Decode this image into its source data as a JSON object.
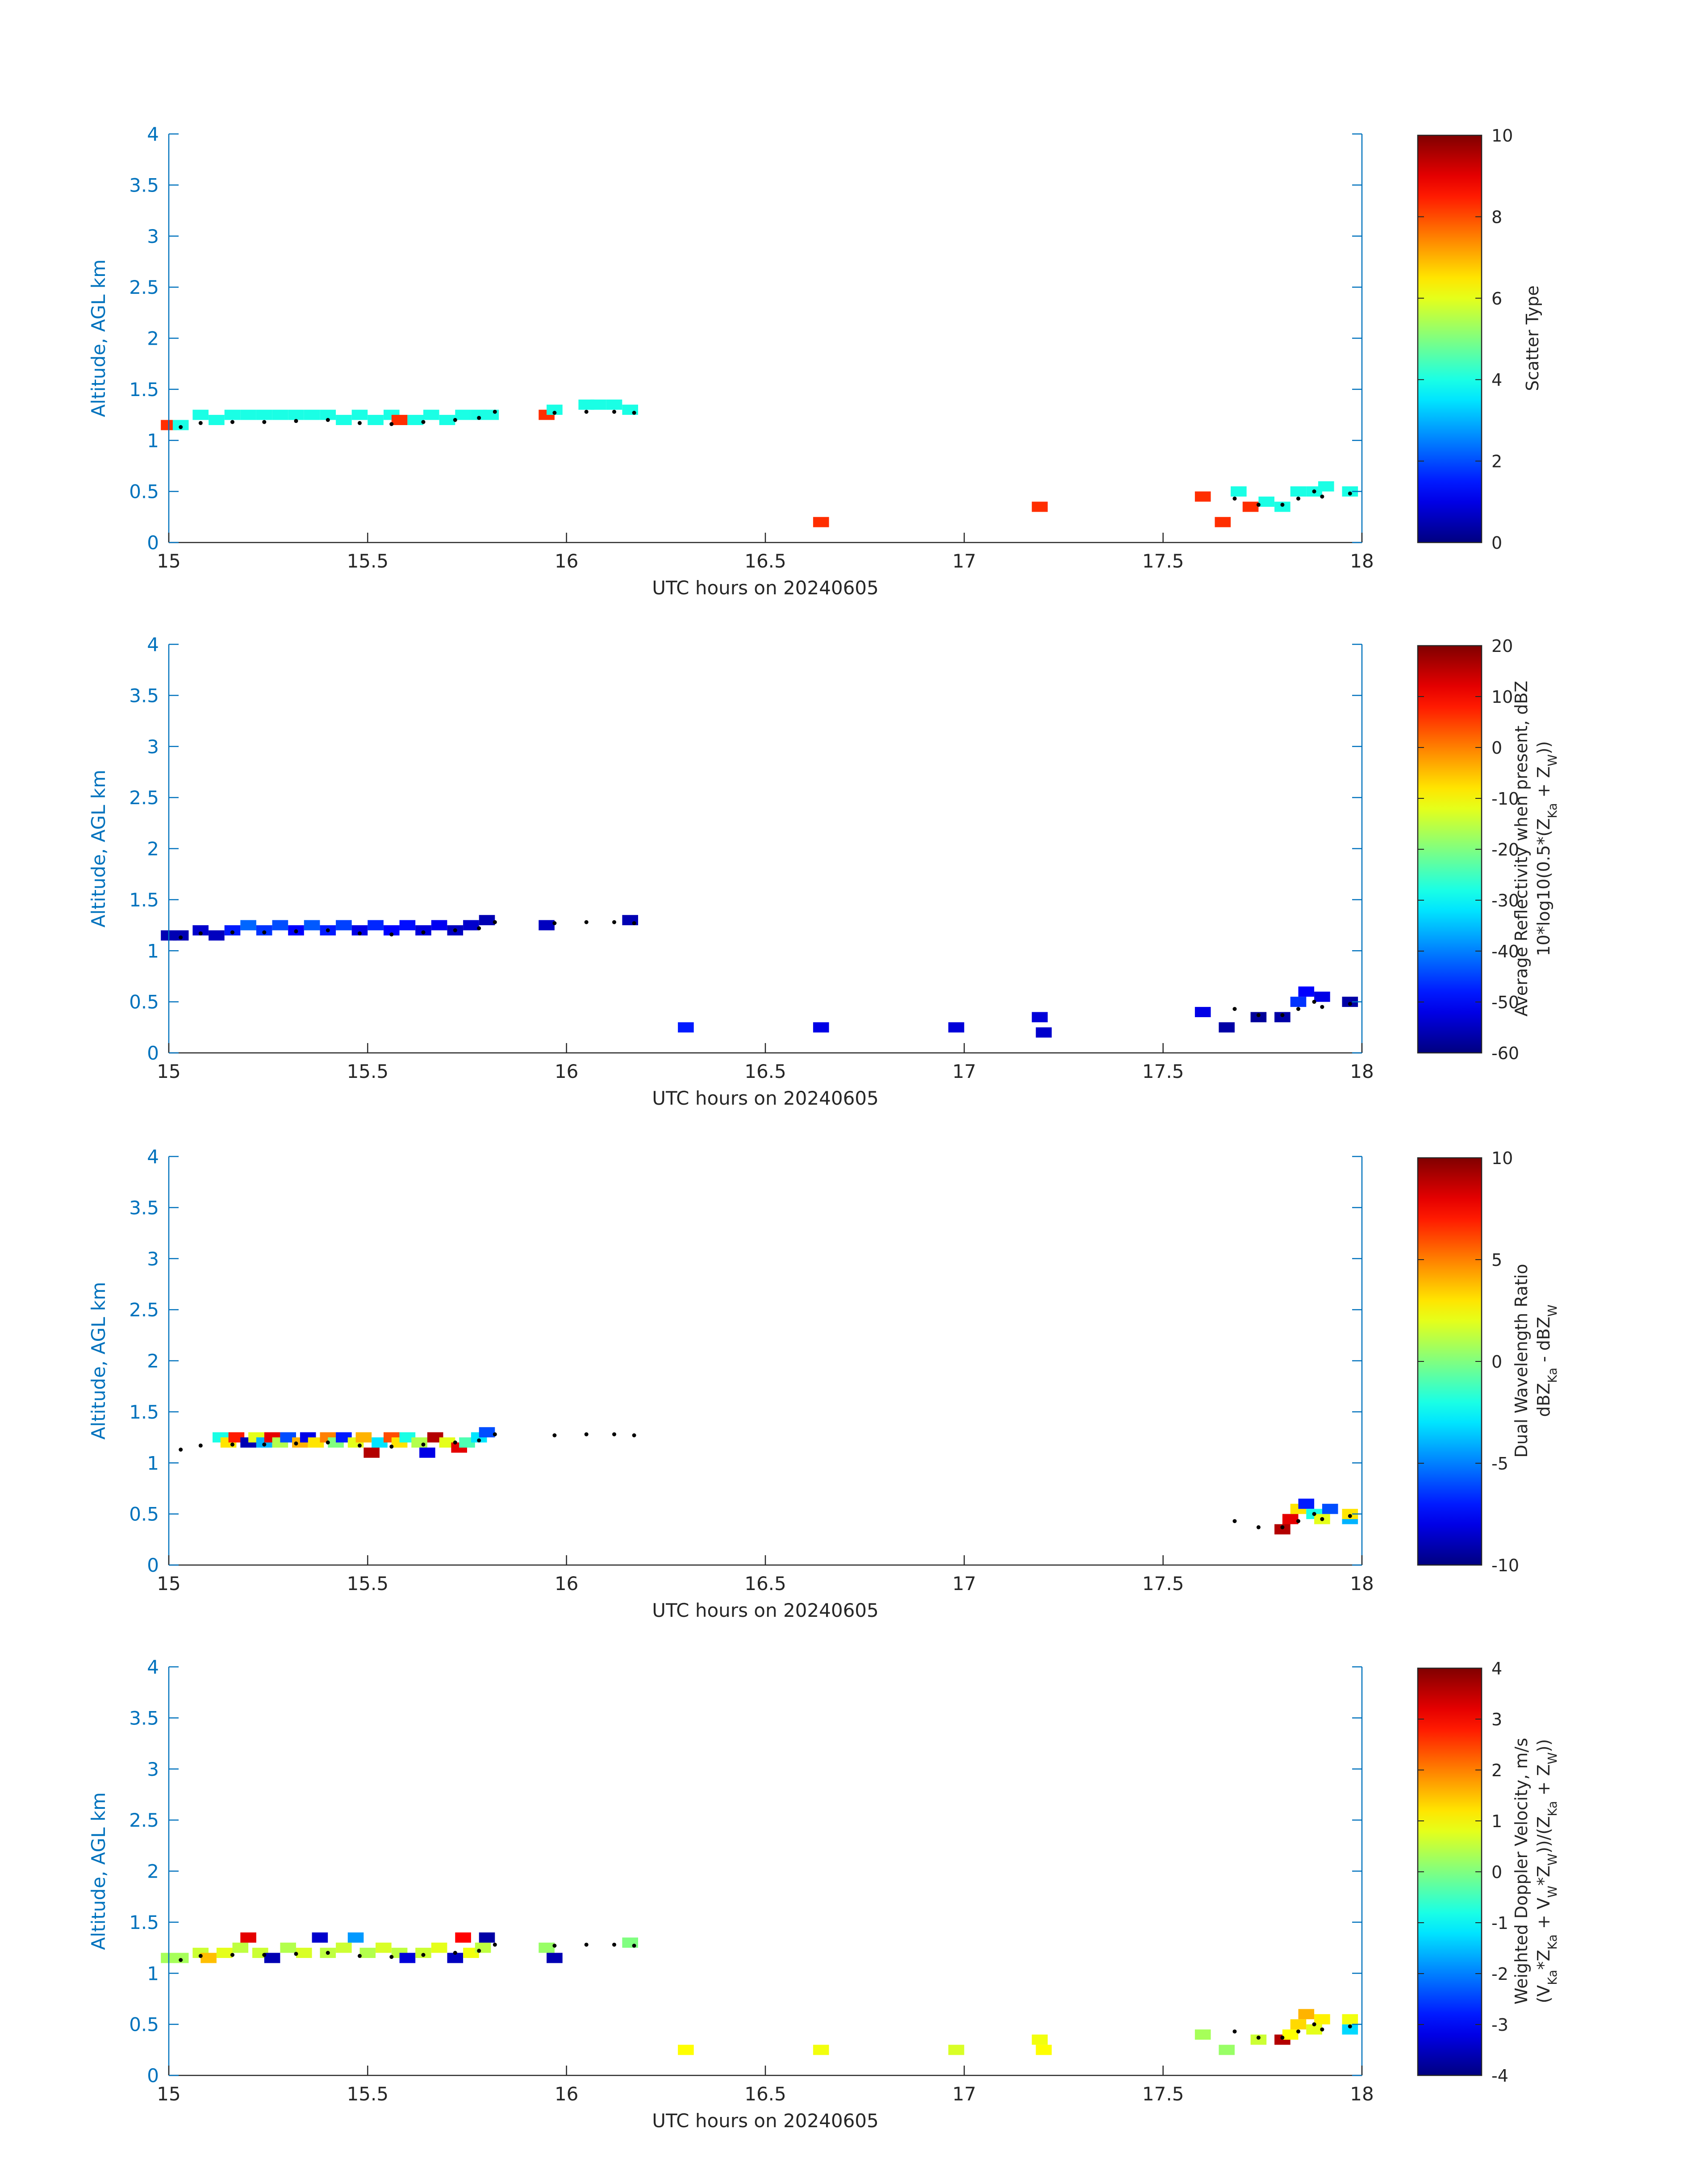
{
  "figure": {
    "background": "#ffffff",
    "axis_color": "#0072bd",
    "text_color": "#262626"
  },
  "colormap": "jet",
  "chart_data": [
    {
      "id": "scatter_type",
      "type": "heatmap",
      "xlabel": "UTC hours on 20240605",
      "ylabel": "Altitude, AGL km",
      "xlim": [
        15,
        18
      ],
      "ylim": [
        0,
        4
      ],
      "xticks": [
        "15",
        "15.5",
        "16",
        "16.5",
        "17",
        "17.5",
        "18"
      ],
      "yticks": [
        "0",
        "0.5",
        "1",
        "1.5",
        "2",
        "2.5",
        "3",
        "3.5",
        "4"
      ],
      "colorbar": {
        "label_lines": [
          "Scatter Type"
        ],
        "clim": [
          0,
          10
        ],
        "ticks": [
          "0",
          "2",
          "4",
          "6",
          "8",
          "10"
        ]
      },
      "cells": [
        [
          15.0,
          1.15,
          8.3
        ],
        [
          15.03,
          1.15,
          4.0
        ],
        [
          15.08,
          1.25,
          4.0
        ],
        [
          15.12,
          1.2,
          4.0
        ],
        [
          15.16,
          1.25,
          4.0
        ],
        [
          15.2,
          1.25,
          4.0
        ],
        [
          15.24,
          1.25,
          4.0
        ],
        [
          15.28,
          1.25,
          4.0
        ],
        [
          15.32,
          1.25,
          4.0
        ],
        [
          15.36,
          1.25,
          4.0
        ],
        [
          15.4,
          1.25,
          4.0
        ],
        [
          15.44,
          1.2,
          4.0
        ],
        [
          15.48,
          1.25,
          4.0
        ],
        [
          15.52,
          1.2,
          4.0
        ],
        [
          15.56,
          1.25,
          4.0
        ],
        [
          15.58,
          1.2,
          8.3
        ],
        [
          15.62,
          1.2,
          4.0
        ],
        [
          15.66,
          1.25,
          4.0
        ],
        [
          15.7,
          1.2,
          4.0
        ],
        [
          15.74,
          1.25,
          4.0
        ],
        [
          15.78,
          1.25,
          4.0
        ],
        [
          15.81,
          1.25,
          4.0
        ],
        [
          15.95,
          1.25,
          8.3
        ],
        [
          15.97,
          1.3,
          4.0
        ],
        [
          16.05,
          1.35,
          4.0
        ],
        [
          16.08,
          1.35,
          4.0
        ],
        [
          16.12,
          1.35,
          4.0
        ],
        [
          16.16,
          1.3,
          4.0
        ],
        [
          16.64,
          0.2,
          8.3
        ],
        [
          17.19,
          0.35,
          8.3
        ],
        [
          17.6,
          0.45,
          8.3
        ],
        [
          17.65,
          0.2,
          8.3
        ],
        [
          17.69,
          0.5,
          4.0
        ],
        [
          17.72,
          0.35,
          8.3
        ],
        [
          17.76,
          0.4,
          4.0
        ],
        [
          17.8,
          0.35,
          4.0
        ],
        [
          17.84,
          0.5,
          4.0
        ],
        [
          17.88,
          0.5,
          4.0
        ],
        [
          17.91,
          0.55,
          4.0
        ],
        [
          17.97,
          0.5,
          4.0
        ]
      ],
      "track": [
        [
          15.03,
          1.13
        ],
        [
          15.08,
          1.17
        ],
        [
          15.16,
          1.18
        ],
        [
          15.24,
          1.18
        ],
        [
          15.32,
          1.19
        ],
        [
          15.4,
          1.2
        ],
        [
          15.48,
          1.17
        ],
        [
          15.56,
          1.16
        ],
        [
          15.64,
          1.18
        ],
        [
          15.72,
          1.2
        ],
        [
          15.78,
          1.22
        ],
        [
          15.82,
          1.28
        ],
        [
          15.97,
          1.27
        ],
        [
          16.05,
          1.28
        ],
        [
          16.12,
          1.28
        ],
        [
          16.17,
          1.27
        ],
        [
          17.68,
          0.43
        ],
        [
          17.74,
          0.37
        ],
        [
          17.8,
          0.37
        ],
        [
          17.84,
          0.43
        ],
        [
          17.88,
          0.5
        ],
        [
          17.9,
          0.45
        ],
        [
          17.97,
          0.48
        ]
      ]
    },
    {
      "id": "avg_reflectivity",
      "type": "heatmap",
      "xlabel": "UTC hours on 20240605",
      "ylabel": "Altitude, AGL km",
      "xlim": [
        15,
        18
      ],
      "ylim": [
        0,
        4
      ],
      "xticks": [
        "15",
        "15.5",
        "16",
        "16.5",
        "17",
        "17.5",
        "18"
      ],
      "yticks": [
        "0",
        "0.5",
        "1",
        "1.5",
        "2",
        "2.5",
        "3",
        "3.5",
        "4"
      ],
      "colorbar": {
        "label_lines": [
          "Average Reflectivity when present, dBZ",
          "10*log10(0.5*(Z_Ka + Z_W))"
        ],
        "clim": [
          -60,
          20
        ],
        "ticks": [
          "-60",
          "-50",
          "-40",
          "-30",
          "-20",
          "-10",
          "0",
          "10",
          "20"
        ]
      },
      "cells": [
        [
          15.0,
          1.15,
          -56
        ],
        [
          15.03,
          1.15,
          -56
        ],
        [
          15.08,
          1.2,
          -54
        ],
        [
          15.12,
          1.15,
          -55
        ],
        [
          15.16,
          1.2,
          -48
        ],
        [
          15.2,
          1.25,
          -42
        ],
        [
          15.24,
          1.2,
          -46
        ],
        [
          15.28,
          1.25,
          -44
        ],
        [
          15.32,
          1.2,
          -50
        ],
        [
          15.36,
          1.25,
          -43
        ],
        [
          15.4,
          1.2,
          -48
        ],
        [
          15.44,
          1.25,
          -45
        ],
        [
          15.48,
          1.2,
          -52
        ],
        [
          15.52,
          1.25,
          -47
        ],
        [
          15.56,
          1.2,
          -50
        ],
        [
          15.6,
          1.25,
          -49
        ],
        [
          15.64,
          1.2,
          -53
        ],
        [
          15.68,
          1.25,
          -51
        ],
        [
          15.72,
          1.2,
          -55
        ],
        [
          15.76,
          1.25,
          -54
        ],
        [
          15.8,
          1.3,
          -56
        ],
        [
          15.95,
          1.25,
          -55
        ],
        [
          16.16,
          1.3,
          -56
        ],
        [
          16.3,
          0.25,
          -48
        ],
        [
          16.64,
          0.25,
          -52
        ],
        [
          16.98,
          0.25,
          -53
        ],
        [
          17.19,
          0.35,
          -53
        ],
        [
          17.2,
          0.2,
          -54
        ],
        [
          17.6,
          0.4,
          -52
        ],
        [
          17.66,
          0.25,
          -57
        ],
        [
          17.74,
          0.35,
          -58
        ],
        [
          17.8,
          0.35,
          -57
        ],
        [
          17.84,
          0.5,
          -46
        ],
        [
          17.86,
          0.6,
          -50
        ],
        [
          17.9,
          0.55,
          -52
        ],
        [
          17.97,
          0.5,
          -57
        ]
      ],
      "track": [
        [
          15.03,
          1.13
        ],
        [
          15.08,
          1.17
        ],
        [
          15.16,
          1.18
        ],
        [
          15.24,
          1.18
        ],
        [
          15.32,
          1.19
        ],
        [
          15.4,
          1.2
        ],
        [
          15.48,
          1.17
        ],
        [
          15.56,
          1.16
        ],
        [
          15.64,
          1.18
        ],
        [
          15.72,
          1.2
        ],
        [
          15.78,
          1.22
        ],
        [
          15.82,
          1.28
        ],
        [
          15.97,
          1.27
        ],
        [
          16.05,
          1.28
        ],
        [
          16.12,
          1.28
        ],
        [
          16.17,
          1.27
        ],
        [
          17.68,
          0.43
        ],
        [
          17.74,
          0.37
        ],
        [
          17.8,
          0.37
        ],
        [
          17.84,
          0.43
        ],
        [
          17.88,
          0.5
        ],
        [
          17.9,
          0.45
        ],
        [
          17.97,
          0.48
        ]
      ]
    },
    {
      "id": "dwr",
      "type": "heatmap",
      "xlabel": "UTC hours on 20240605",
      "ylabel": "Altitude, AGL km",
      "xlim": [
        15,
        18
      ],
      "ylim": [
        0,
        4
      ],
      "xticks": [
        "15",
        "15.5",
        "16",
        "16.5",
        "17",
        "17.5",
        "18"
      ],
      "yticks": [
        "0",
        "0.5",
        "1",
        "1.5",
        "2",
        "2.5",
        "3",
        "3.5",
        "4"
      ],
      "colorbar": {
        "label_lines": [
          "Dual Wavelength Ratio",
          "dBZ_Ka - dBZ_W"
        ],
        "clim": [
          -10,
          10
        ],
        "ticks": [
          "-10",
          "-5",
          "0",
          "5",
          "10"
        ]
      },
      "cells": [
        [
          15.13,
          1.25,
          -2
        ],
        [
          15.15,
          1.2,
          3
        ],
        [
          15.17,
          1.25,
          7
        ],
        [
          15.2,
          1.2,
          -9
        ],
        [
          15.22,
          1.25,
          2
        ],
        [
          15.24,
          1.2,
          -4
        ],
        [
          15.26,
          1.25,
          8
        ],
        [
          15.28,
          1.2,
          1
        ],
        [
          15.3,
          1.25,
          -6
        ],
        [
          15.33,
          1.2,
          4
        ],
        [
          15.35,
          1.25,
          -8
        ],
        [
          15.37,
          1.2,
          3
        ],
        [
          15.4,
          1.25,
          5
        ],
        [
          15.42,
          1.2,
          0
        ],
        [
          15.44,
          1.25,
          -7
        ],
        [
          15.47,
          1.2,
          2
        ],
        [
          15.49,
          1.25,
          4
        ],
        [
          15.51,
          1.1,
          9
        ],
        [
          15.53,
          1.2,
          -3
        ],
        [
          15.56,
          1.25,
          6
        ],
        [
          15.58,
          1.2,
          3
        ],
        [
          15.6,
          1.25,
          -2
        ],
        [
          15.63,
          1.2,
          1
        ],
        [
          15.65,
          1.1,
          -8
        ],
        [
          15.67,
          1.25,
          9
        ],
        [
          15.7,
          1.2,
          2
        ],
        [
          15.73,
          1.15,
          8
        ],
        [
          15.75,
          1.2,
          -1
        ],
        [
          15.78,
          1.25,
          -3
        ],
        [
          15.8,
          1.3,
          -6
        ],
        [
          17.8,
          0.35,
          9
        ],
        [
          17.82,
          0.45,
          8
        ],
        [
          17.84,
          0.55,
          3
        ],
        [
          17.86,
          0.6,
          -7
        ],
        [
          17.88,
          0.5,
          -2
        ],
        [
          17.9,
          0.45,
          2
        ],
        [
          17.92,
          0.55,
          -6
        ],
        [
          17.97,
          0.45,
          -4
        ],
        [
          17.97,
          0.5,
          3
        ]
      ],
      "track": [
        [
          15.03,
          1.13
        ],
        [
          15.08,
          1.17
        ],
        [
          15.16,
          1.18
        ],
        [
          15.24,
          1.18
        ],
        [
          15.32,
          1.19
        ],
        [
          15.4,
          1.2
        ],
        [
          15.48,
          1.17
        ],
        [
          15.56,
          1.16
        ],
        [
          15.64,
          1.18
        ],
        [
          15.72,
          1.2
        ],
        [
          15.78,
          1.22
        ],
        [
          15.82,
          1.28
        ],
        [
          15.97,
          1.27
        ],
        [
          16.05,
          1.28
        ],
        [
          16.12,
          1.28
        ],
        [
          16.17,
          1.27
        ],
        [
          17.68,
          0.43
        ],
        [
          17.74,
          0.37
        ],
        [
          17.8,
          0.37
        ],
        [
          17.84,
          0.43
        ],
        [
          17.88,
          0.5
        ],
        [
          17.9,
          0.45
        ],
        [
          17.97,
          0.48
        ]
      ]
    },
    {
      "id": "weighted_doppler",
      "type": "heatmap",
      "xlabel": "UTC hours on 20240605",
      "ylabel": "Altitude, AGL km",
      "xlim": [
        15,
        18
      ],
      "ylim": [
        0,
        4
      ],
      "xticks": [
        "15",
        "15.5",
        "16",
        "16.5",
        "17",
        "17.5",
        "18"
      ],
      "yticks": [
        "0",
        "0.5",
        "1",
        "1.5",
        "2",
        "2.5",
        "3",
        "3.5",
        "4"
      ],
      "colorbar": {
        "label_lines": [
          "Weighted Doppler Velocity, m/s",
          "(V_Ka*Z_Ka + V_W*Z_W))/(Z_Ka + Z_W))"
        ],
        "clim": [
          -4,
          4
        ],
        "ticks": [
          "-4",
          "-3",
          "-2",
          "-1",
          "0",
          "1",
          "2",
          "3",
          "4"
        ]
      },
      "cells": [
        [
          15.0,
          1.15,
          0.3
        ],
        [
          15.03,
          1.15,
          0.3
        ],
        [
          15.08,
          1.2,
          0.6
        ],
        [
          15.1,
          1.15,
          1.5
        ],
        [
          15.14,
          1.2,
          0.8
        ],
        [
          15.18,
          1.25,
          0.5
        ],
        [
          15.2,
          1.35,
          3.2
        ],
        [
          15.23,
          1.2,
          0.6
        ],
        [
          15.26,
          1.15,
          -3.6
        ],
        [
          15.3,
          1.25,
          0.4
        ],
        [
          15.34,
          1.2,
          0.7
        ],
        [
          15.38,
          1.35,
          -3.4
        ],
        [
          15.4,
          1.2,
          0.5
        ],
        [
          15.44,
          1.25,
          0.6
        ],
        [
          15.47,
          1.35,
          -1.8
        ],
        [
          15.5,
          1.2,
          0.4
        ],
        [
          15.54,
          1.25,
          0.7
        ],
        [
          15.58,
          1.2,
          0.5
        ],
        [
          15.6,
          1.15,
          -3.3
        ],
        [
          15.64,
          1.2,
          0.6
        ],
        [
          15.68,
          1.25,
          0.8
        ],
        [
          15.72,
          1.15,
          -3.5
        ],
        [
          15.74,
          1.35,
          3.0
        ],
        [
          15.76,
          1.2,
          0.9
        ],
        [
          15.79,
          1.25,
          0.5
        ],
        [
          15.8,
          1.35,
          -3.7
        ],
        [
          15.95,
          1.25,
          0.2
        ],
        [
          15.97,
          1.15,
          -3.6
        ],
        [
          16.16,
          1.3,
          0.0
        ],
        [
          16.3,
          0.25,
          1.0
        ],
        [
          16.64,
          0.25,
          0.9
        ],
        [
          16.98,
          0.25,
          0.7
        ],
        [
          17.19,
          0.35,
          0.9
        ],
        [
          17.2,
          0.25,
          1.0
        ],
        [
          17.6,
          0.4,
          0.3
        ],
        [
          17.66,
          0.25,
          0.2
        ],
        [
          17.74,
          0.35,
          0.6
        ],
        [
          17.8,
          0.35,
          3.6
        ],
        [
          17.82,
          0.4,
          1.0
        ],
        [
          17.84,
          0.5,
          1.3
        ],
        [
          17.86,
          0.6,
          1.6
        ],
        [
          17.88,
          0.45,
          0.8
        ],
        [
          17.9,
          0.55,
          1.1
        ],
        [
          17.97,
          0.45,
          -1.3
        ],
        [
          17.97,
          0.55,
          0.9
        ]
      ],
      "track": [
        [
          15.03,
          1.13
        ],
        [
          15.08,
          1.17
        ],
        [
          15.16,
          1.18
        ],
        [
          15.24,
          1.18
        ],
        [
          15.32,
          1.19
        ],
        [
          15.4,
          1.2
        ],
        [
          15.48,
          1.17
        ],
        [
          15.56,
          1.16
        ],
        [
          15.64,
          1.18
        ],
        [
          15.72,
          1.2
        ],
        [
          15.78,
          1.22
        ],
        [
          15.82,
          1.28
        ],
        [
          15.97,
          1.27
        ],
        [
          16.05,
          1.28
        ],
        [
          16.12,
          1.28
        ],
        [
          16.17,
          1.27
        ],
        [
          17.68,
          0.43
        ],
        [
          17.74,
          0.37
        ],
        [
          17.8,
          0.37
        ],
        [
          17.84,
          0.43
        ],
        [
          17.88,
          0.5
        ],
        [
          17.9,
          0.45
        ],
        [
          17.97,
          0.48
        ]
      ]
    }
  ]
}
